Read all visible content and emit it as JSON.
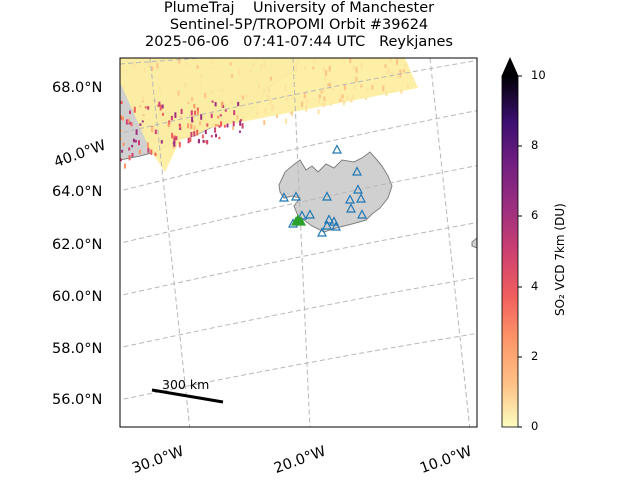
{
  "title": {
    "line1": "PlumeTraj    University of Manchester",
    "line2": "Sentinel-5P/TROPOMI Orbit #39624",
    "line3": "2025-06-06   07:41-07:44 UTC   Reykjanes"
  },
  "map": {
    "lat_labels": [
      "68.0°N",
      "64.0°N",
      "62.0°N",
      "60.0°N",
      "58.0°N",
      "56.0°N"
    ],
    "lon_labels": [
      "40.0°W",
      "30.0°W",
      "20.0°W",
      "10.0°W"
    ],
    "scale_bar_label": "300 km",
    "land_color": "#d0d0d0",
    "coast_color": "#808080",
    "grid_color": "#b8b8b8",
    "volcano_marker_color": "#1f77b4",
    "active_volcano_color": "#2ca02c"
  },
  "colorbar": {
    "label": "SO₂ VCD 7km (DU)",
    "ticks": [
      "0",
      "2",
      "4",
      "6",
      "8",
      "10"
    ],
    "min": 0,
    "max": 10,
    "extend": "max",
    "colormap": "magma_r"
  }
}
